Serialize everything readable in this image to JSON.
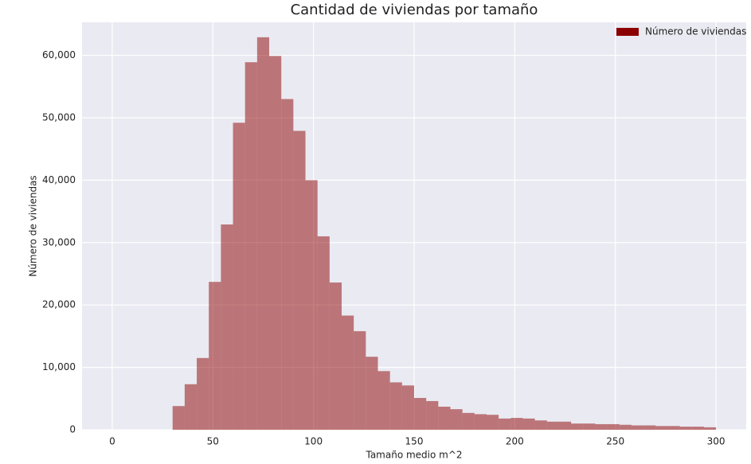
{
  "chart_data": {
    "type": "histogram",
    "title": "Cantidad de viviendas por tamaño",
    "x_label": "Tamaño medio m^2",
    "y_label": "Número de viviendas",
    "series": [
      {
        "name": "Número de viviendas",
        "color": "#8b0000",
        "bins": [
          30,
          36,
          42,
          48,
          54,
          60,
          66,
          72,
          78,
          84,
          90,
          96,
          102,
          108,
          114,
          120,
          126,
          132,
          138,
          144,
          150,
          156,
          162,
          168,
          174,
          180,
          186,
          192,
          198,
          204,
          210,
          216,
          222,
          228,
          234,
          240,
          246,
          252,
          258,
          264,
          270,
          276,
          282,
          288,
          294,
          300
        ],
        "values": [
          3800,
          7300,
          11500,
          23700,
          32900,
          49200,
          58900,
          62900,
          59900,
          53000,
          47900,
          40000,
          31000,
          23600,
          18300,
          15800,
          11700,
          9400,
          7600,
          7100,
          5100,
          4600,
          3700,
          3300,
          2700,
          2500,
          2400,
          1800,
          1900,
          1800,
          1500,
          1300,
          1300,
          1000,
          1000,
          900,
          900,
          800,
          700,
          700,
          600,
          600,
          500,
          500,
          400
        ]
      }
    ],
    "xlim": [
      -15,
      315
    ],
    "xticks": [
      0,
      50,
      100,
      150,
      200,
      250,
      300
    ],
    "ylim": [
      0,
      65300
    ],
    "yticks": [
      0,
      {
        "value": 10000,
        "label": "10,000"
      },
      {
        "value": 20000,
        "label": "20,000"
      },
      {
        "value": 30000,
        "label": "30,000"
      },
      {
        "value": 40000,
        "label": "40,000"
      },
      {
        "value": 50000,
        "label": "50,000"
      },
      {
        "value": 60000,
        "label": "60,000"
      }
    ],
    "grid": true,
    "legend": "upper right",
    "opacity": 0.5
  }
}
